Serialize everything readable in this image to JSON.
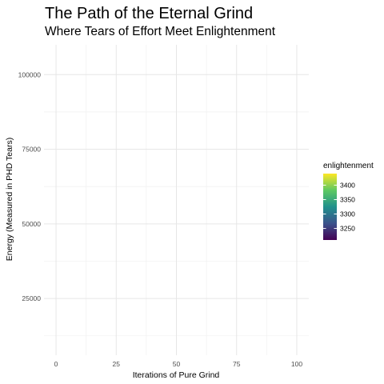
{
  "chart_data": {
    "type": "scatter",
    "title": "The Path of the Eternal Grind",
    "subtitle": "Where Tears of Effort Meet Enlightenment",
    "xlabel": "Iterations of Pure Grind",
    "ylabel": "Energy (Measured in PHD Tears)",
    "xlim": [
      -5,
      105
    ],
    "ylim": [
      6000,
      110000
    ],
    "x_ticks": [
      0,
      25,
      50,
      75,
      100
    ],
    "y_ticks": [
      25000,
      50000,
      75000,
      100000
    ],
    "grid": true,
    "points": [],
    "legend": {
      "title": "enlightenment",
      "placement": "right",
      "type": "colorbar",
      "min": 3210,
      "max": 3440,
      "ticks": [
        3250,
        3300,
        3350,
        3400
      ],
      "colors": [
        "#440154",
        "#3b528b",
        "#21918c",
        "#5ec962",
        "#fde725"
      ]
    }
  }
}
